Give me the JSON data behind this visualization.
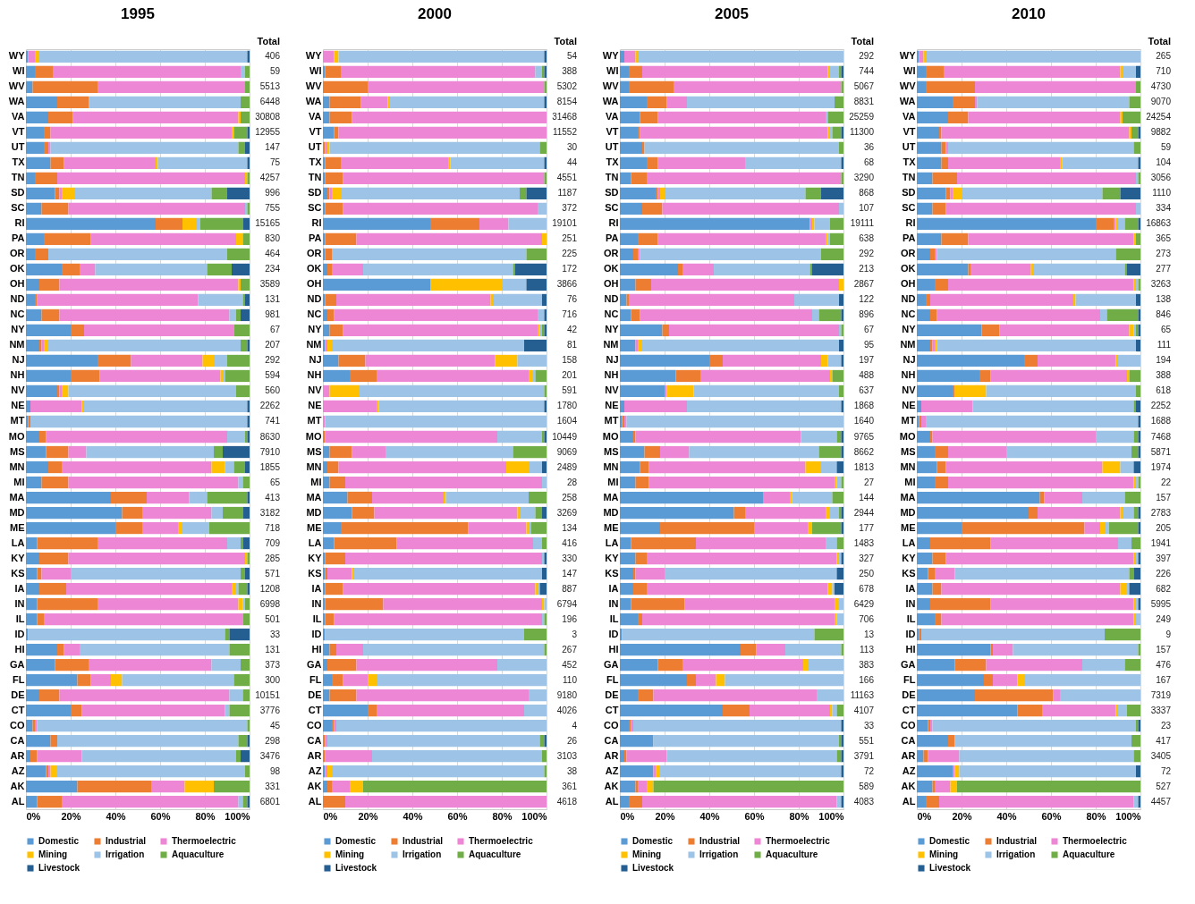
{
  "chart_data": [
    {
      "type": "bar",
      "orientation": "horizontal",
      "stacked": true,
      "title": "1995",
      "legend": "bottom",
      "grid": "x",
      "categories": [
        "WY",
        "WI",
        "WV",
        "WA",
        "VA",
        "VT",
        "UT",
        "TX",
        "TN",
        "SD",
        "SC",
        "RI",
        "PA",
        "OR",
        "OK",
        "OH",
        "ND",
        "NC",
        "NY",
        "NM",
        "NJ",
        "NH",
        "NV",
        "NE",
        "MT",
        "MO",
        "MS",
        "MN",
        "MI",
        "MA",
        "MD",
        "ME",
        "LA",
        "KY",
        "KS",
        "IA",
        "IN",
        "IL",
        "ID",
        "HI",
        "GA",
        "FL",
        "DE",
        "CT",
        "CO",
        "CA",
        "AR",
        "AZ",
        "AK",
        "AL"
      ],
      "xlim": [
        0,
        100
      ],
      "xticks": [
        {
          "value": 0,
          "label": "0%"
        },
        {
          "value": 20,
          "label": "20%"
        },
        {
          "value": 40,
          "label": "40%"
        },
        {
          "value": 60,
          "label": "60%"
        },
        {
          "value": 80,
          "label": "80%"
        },
        {
          "value": 100,
          "label": "100%"
        }
      ],
      "series": [
        {
          "name": "Domestic",
          "color": "#5b9bd5",
          "values": [
            1,
            4,
            3,
            14,
            10,
            8,
            8,
            11,
            4,
            13,
            7,
            58,
            8,
            4,
            16,
            6,
            4,
            7,
            20,
            6,
            32,
            20,
            14,
            2,
            1,
            6,
            9,
            10,
            7,
            38,
            43,
            40,
            5,
            6,
            5,
            6,
            5,
            5,
            1,
            14,
            13,
            23,
            6,
            20,
            3,
            11,
            2,
            9,
            23,
            5
          ]
        },
        {
          "name": "Industrial",
          "color": "#ed7d31",
          "values": [
            0,
            8,
            29,
            14,
            11,
            3,
            2,
            6,
            10,
            2,
            12,
            12,
            21,
            6,
            8,
            9,
            1,
            8,
            6,
            1,
            15,
            13,
            1,
            0,
            1,
            3,
            10,
            6,
            12,
            16,
            9,
            12,
            27,
            13,
            2,
            12,
            27,
            3,
            0,
            3,
            15,
            6,
            9,
            5,
            1,
            3,
            3,
            1,
            33,
            11
          ]
        },
        {
          "name": "Thermoelectric",
          "color": "#ee86d6",
          "values": [
            3,
            84,
            66,
            0,
            74,
            81,
            1,
            41,
            84,
            1,
            79,
            0,
            65,
            0,
            7,
            80,
            72,
            76,
            67,
            1,
            32,
            54,
            1,
            23,
            0,
            81,
            8,
            67,
            76,
            19,
            31,
            16,
            58,
            79,
            13,
            74,
            63,
            89,
            0,
            7,
            55,
            9,
            76,
            64,
            1,
            0,
            20,
            1,
            15,
            79
          ]
        },
        {
          "name": "Mining",
          "color": "#ffc000",
          "values": [
            2,
            0,
            0,
            0,
            1,
            1,
            0,
            1,
            1,
            6,
            0,
            6,
            3,
            0,
            0,
            1,
            0,
            0,
            0,
            2,
            5,
            1,
            3,
            1,
            0,
            0,
            0,
            6,
            0,
            0,
            0,
            2,
            0,
            1,
            0,
            2,
            2,
            0,
            0,
            0,
            0,
            5,
            0,
            0,
            0,
            0,
            0,
            3,
            13,
            0
          ]
        },
        {
          "name": "Irrigation",
          "color": "#9dc3e6",
          "values": [
            93,
            2,
            0,
            68,
            0,
            0,
            84,
            40,
            0,
            61,
            1,
            2,
            0,
            80,
            50,
            0,
            20,
            3,
            0,
            86,
            6,
            1,
            75,
            73,
            97,
            8,
            57,
            4,
            2,
            8,
            5,
            12,
            6,
            0,
            76,
            1,
            1,
            0,
            88,
            67,
            13,
            50,
            6,
            2,
            94,
            81,
            69,
            84,
            0,
            2
          ]
        },
        {
          "name": "Aquaculture",
          "color": "#70ad47",
          "values": [
            0,
            2,
            2,
            4,
            4,
            6,
            3,
            0,
            1,
            7,
            1,
            19,
            3,
            10,
            11,
            4,
            1,
            2,
            7,
            3,
            10,
            11,
            6,
            0,
            0,
            1,
            4,
            5,
            3,
            18,
            9,
            18,
            1,
            1,
            2,
            4,
            2,
            3,
            2,
            9,
            4,
            7,
            3,
            9,
            1,
            4,
            2,
            2,
            16,
            2
          ]
        },
        {
          "name": "Livestock",
          "color": "#255e91",
          "values": [
            1,
            0,
            0,
            0,
            0,
            1,
            2,
            1,
            0,
            10,
            0,
            3,
            0,
            0,
            8,
            0,
            2,
            4,
            0,
            1,
            0,
            0,
            0,
            1,
            1,
            1,
            12,
            2,
            0,
            1,
            3,
            0,
            3,
            0,
            2,
            1,
            0,
            0,
            9,
            0,
            0,
            0,
            0,
            0,
            0,
            1,
            4,
            0,
            0,
            1
          ]
        }
      ],
      "annotations": [
        "Total",
        "406",
        "59",
        "5513",
        "6448",
        "30808",
        "12955",
        "147",
        "75",
        "4257",
        "996",
        "755",
        "15165",
        "830",
        "464",
        "234",
        "3589",
        "131",
        "981",
        "67",
        "207",
        "292",
        "594",
        "560",
        "2262",
        "741",
        "8630",
        "7910",
        "1855",
        "65",
        "413",
        "3182",
        "718",
        "709",
        "285",
        "571",
        "1208",
        "6998",
        "501",
        "33",
        "131",
        "373",
        "300",
        "10151",
        "3776",
        "45",
        "298",
        "3476",
        "98",
        "331",
        "6801"
      ]
    },
    {
      "type": "bar",
      "orientation": "horizontal",
      "stacked": true,
      "title": "2000",
      "legend": "bottom",
      "grid": "x",
      "categories": [
        "WY",
        "WI",
        "WV",
        "WA",
        "VA",
        "VT",
        "UT",
        "TX",
        "TN",
        "SD",
        "SC",
        "RI",
        "PA",
        "OR",
        "OK",
        "OH",
        "ND",
        "NC",
        "NY",
        "NM",
        "NJ",
        "NH",
        "NV",
        "NE",
        "MT",
        "MO",
        "MS",
        "MN",
        "MI",
        "MA",
        "MD",
        "ME",
        "LA",
        "KY",
        "KS",
        "IA",
        "IN",
        "IL",
        "ID",
        "HI",
        "GA",
        "FL",
        "DE",
        "CT",
        "CO",
        "CA",
        "AR",
        "AZ",
        "AK",
        "AL"
      ],
      "xlim": [
        0,
        100
      ],
      "xticks": [
        {
          "value": 0,
          "label": "0%"
        },
        {
          "value": 20,
          "label": "20%"
        },
        {
          "value": 40,
          "label": "40%"
        },
        {
          "value": 60,
          "label": "60%"
        },
        {
          "value": 80,
          "label": "80%"
        },
        {
          "value": 100,
          "label": "100%"
        }
      ],
      "series": [
        {
          "name": "Domestic",
          "color": "#5b9bd5",
          "values": [
            0,
            1,
            0,
            3,
            3,
            5,
            0,
            1,
            1,
            2,
            1,
            48,
            1,
            1,
            2,
            48,
            1,
            2,
            3,
            1,
            7,
            12,
            0,
            0,
            0,
            0,
            3,
            2,
            3,
            11,
            13,
            8,
            5,
            1,
            1,
            1,
            1,
            1,
            1,
            3,
            2,
            4,
            3,
            20,
            4,
            0,
            0,
            1,
            2,
            0
          ]
        },
        {
          "name": "Industrial",
          "color": "#ed7d31",
          "values": [
            0,
            7,
            20,
            14,
            10,
            2,
            1,
            7,
            8,
            1,
            8,
            22,
            14,
            3,
            2,
            0,
            5,
            3,
            6,
            0,
            12,
            12,
            0,
            0,
            0,
            1,
            10,
            5,
            7,
            11,
            10,
            57,
            28,
            9,
            1,
            8,
            26,
            4,
            0,
            3,
            13,
            5,
            12,
            4,
            1,
            1,
            1,
            0,
            2,
            10
          ]
        },
        {
          "name": "Thermoelectric",
          "color": "#ee86d6",
          "values": [
            5,
            87,
            79,
            12,
            87,
            93,
            1,
            48,
            90,
            1,
            87,
            13,
            83,
            0,
            14,
            0,
            69,
            91,
            87,
            1,
            58,
            68,
            3,
            24,
            1,
            77,
            15,
            75,
            88,
            32,
            64,
            26,
            61,
            88,
            11,
            86,
            71,
            93,
            0,
            12,
            63,
            11,
            77,
            66,
            1,
            1,
            21,
            1,
            8,
            90
          ]
        },
        {
          "name": "Mining",
          "color": "#ffc000",
          "values": [
            2,
            0,
            0,
            1,
            0,
            0,
            1,
            1,
            0,
            4,
            0,
            0,
            2,
            0,
            0,
            32,
            1,
            0,
            1,
            2,
            10,
            2,
            13,
            1,
            0,
            0,
            0,
            10,
            0,
            1,
            1,
            1,
            0,
            0,
            1,
            1,
            1,
            0,
            0,
            0,
            0,
            4,
            0,
            0,
            0,
            0,
            0,
            2,
            6,
            0
          ]
        },
        {
          "name": "Irrigation",
          "color": "#9dc3e6",
          "values": [
            92,
            3,
            0,
            69,
            0,
            0,
            94,
            42,
            0,
            80,
            4,
            17,
            0,
            87,
            67,
            11,
            22,
            3,
            1,
            86,
            13,
            1,
            83,
            74,
            99,
            20,
            57,
            6,
            2,
            37,
            7,
            1,
            4,
            1,
            84,
            1,
            1,
            1,
            89,
            81,
            22,
            76,
            8,
            10,
            94,
            95,
            76,
            95,
            0,
            0
          ]
        },
        {
          "name": "Aquaculture",
          "color": "#70ad47",
          "values": [
            0,
            1,
            1,
            0,
            0,
            0,
            3,
            0,
            1,
            3,
            0,
            0,
            0,
            9,
            1,
            0,
            0,
            0,
            1,
            0,
            0,
            5,
            1,
            0,
            0,
            1,
            15,
            0,
            0,
            8,
            3,
            7,
            2,
            0,
            0,
            0,
            0,
            1,
            10,
            1,
            0,
            0,
            0,
            0,
            0,
            2,
            2,
            1,
            82,
            0
          ]
        },
        {
          "name": "Livestock",
          "color": "#255e91",
          "values": [
            1,
            1,
            0,
            1,
            0,
            0,
            0,
            1,
            0,
            9,
            0,
            0,
            0,
            0,
            14,
            9,
            2,
            1,
            1,
            10,
            0,
            0,
            0,
            1,
            0,
            1,
            0,
            2,
            0,
            0,
            2,
            0,
            0,
            1,
            2,
            3,
            0,
            0,
            0,
            0,
            0,
            0,
            0,
            0,
            0,
            1,
            0,
            0,
            0,
            0
          ]
        }
      ],
      "annotations": [
        "Total",
        "54",
        "388",
        "5302",
        "8154",
        "31468",
        "11552",
        "30",
        "44",
        "4551",
        "1187",
        "372",
        "19101",
        "251",
        "225",
        "172",
        "3866",
        "76",
        "716",
        "42",
        "81",
        "158",
        "201",
        "591",
        "1780",
        "1604",
        "10449",
        "9069",
        "2489",
        "28",
        "258",
        "3269",
        "134",
        "416",
        "330",
        "147",
        "887",
        "6794",
        "196",
        "3",
        "267",
        "452",
        "110",
        "9180",
        "4026",
        "4",
        "26",
        "3103",
        "38",
        "361",
        "4618"
      ]
    },
    {
      "type": "bar",
      "orientation": "horizontal",
      "stacked": true,
      "title": "2005",
      "legend": "bottom",
      "grid": "x",
      "categories": [
        "WY",
        "WI",
        "WV",
        "WA",
        "VA",
        "VT",
        "UT",
        "TX",
        "TN",
        "SD",
        "SC",
        "RI",
        "PA",
        "OR",
        "OK",
        "OH",
        "ND",
        "NC",
        "NY",
        "NM",
        "NJ",
        "NH",
        "NV",
        "NE",
        "MT",
        "MO",
        "MS",
        "MN",
        "MI",
        "MA",
        "MD",
        "ME",
        "LA",
        "KY",
        "KS",
        "IA",
        "IN",
        "IL",
        "ID",
        "HI",
        "GA",
        "FL",
        "DE",
        "CT",
        "CO",
        "CA",
        "AR",
        "AZ",
        "AK",
        "AL"
      ],
      "xlim": [
        0,
        100
      ],
      "xticks": [
        {
          "value": 0,
          "label": "0%"
        },
        {
          "value": 20,
          "label": "20%"
        },
        {
          "value": 40,
          "label": "40%"
        },
        {
          "value": 60,
          "label": "60%"
        },
        {
          "value": 80,
          "label": "80%"
        },
        {
          "value": 100,
          "label": "100%"
        }
      ],
      "series": [
        {
          "name": "Domestic",
          "color": "#5b9bd5",
          "values": [
            2,
            4,
            4,
            12,
            9,
            8,
            10,
            12,
            5,
            16,
            10,
            85,
            8,
            6,
            26,
            7,
            3,
            5,
            19,
            7,
            40,
            25,
            20,
            2,
            1,
            6,
            11,
            9,
            7,
            64,
            51,
            18,
            5,
            7,
            6,
            6,
            5,
            8,
            1,
            54,
            17,
            30,
            8,
            46,
            4,
            15,
            2,
            15,
            7,
            4
          ]
        },
        {
          "name": "Industrial",
          "color": "#ed7d31",
          "values": [
            0,
            6,
            20,
            9,
            8,
            1,
            1,
            5,
            7,
            1,
            9,
            0,
            9,
            2,
            2,
            7,
            1,
            4,
            3,
            0,
            6,
            11,
            0,
            0,
            1,
            1,
            7,
            4,
            6,
            0,
            5,
            42,
            29,
            5,
            1,
            6,
            24,
            2,
            0,
            7,
            11,
            4,
            7,
            12,
            1,
            0,
            1,
            0,
            1,
            6
          ]
        },
        {
          "name": "Thermoelectric",
          "color": "#ee86d6",
          "values": [
            5,
            83,
            75,
            9,
            75,
            84,
            0,
            39,
            87,
            1,
            79,
            1,
            75,
            1,
            14,
            84,
            74,
            77,
            76,
            1,
            44,
            58,
            1,
            28,
            1,
            74,
            13,
            70,
            83,
            12,
            36,
            24,
            58,
            85,
            13,
            81,
            67,
            86,
            0,
            13,
            54,
            9,
            73,
            36,
            1,
            0,
            18,
            1,
            4,
            87
          ]
        },
        {
          "name": "Mining",
          "color": "#ffc000",
          "values": [
            1,
            1,
            0,
            0,
            0,
            1,
            0,
            0,
            0,
            2,
            0,
            1,
            1,
            0,
            0,
            2,
            0,
            0,
            0,
            2,
            3,
            1,
            12,
            0,
            0,
            0,
            0,
            7,
            1,
            1,
            2,
            2,
            0,
            1,
            0,
            2,
            2,
            1,
            0,
            0,
            2,
            4,
            0,
            1,
            0,
            0,
            0,
            2,
            3,
            0
          ]
        },
        {
          "name": "Irrigation",
          "color": "#9dc3e6",
          "values": [
            92,
            4,
            0,
            66,
            1,
            1,
            87,
            43,
            0,
            63,
            2,
            7,
            1,
            81,
            43,
            0,
            20,
            3,
            1,
            88,
            6,
            0,
            65,
            69,
            97,
            16,
            58,
            7,
            2,
            18,
            4,
            0,
            5,
            1,
            77,
            1,
            2,
            3,
            86,
            25,
            16,
            53,
            12,
            2,
            93,
            83,
            76,
            81,
            0,
            2
          ]
        },
        {
          "name": "Aquaculture",
          "color": "#70ad47",
          "values": [
            0,
            1,
            1,
            4,
            7,
            4,
            2,
            0,
            1,
            7,
            0,
            6,
            6,
            10,
            1,
            0,
            0,
            10,
            1,
            0,
            0,
            5,
            2,
            0,
            0,
            2,
            10,
            0,
            1,
            5,
            1,
            13,
            3,
            0,
            0,
            0,
            0,
            0,
            13,
            1,
            0,
            0,
            0,
            3,
            0,
            1,
            2,
            0,
            85,
            0
          ]
        },
        {
          "name": "Livestock",
          "color": "#255e91",
          "values": [
            0,
            1,
            0,
            0,
            0,
            1,
            0,
            1,
            0,
            10,
            0,
            0,
            0,
            0,
            14,
            0,
            2,
            1,
            0,
            2,
            1,
            0,
            0,
            1,
            0,
            1,
            1,
            3,
            0,
            0,
            1,
            1,
            0,
            1,
            3,
            4,
            0,
            0,
            0,
            0,
            0,
            0,
            0,
            0,
            1,
            1,
            1,
            1,
            0,
            1
          ]
        }
      ],
      "annotations": [
        "Total",
        "292",
        "744",
        "5067",
        "8831",
        "25259",
        "11300",
        "36",
        "68",
        "3290",
        "868",
        "107",
        "19111",
        "638",
        "292",
        "213",
        "2867",
        "122",
        "896",
        "67",
        "95",
        "197",
        "488",
        "637",
        "1868",
        "1640",
        "9765",
        "8662",
        "1813",
        "27",
        "144",
        "2944",
        "177",
        "1483",
        "327",
        "250",
        "678",
        "6429",
        "706",
        "13",
        "113",
        "383",
        "166",
        "11163",
        "4107",
        "33",
        "551",
        "3791",
        "72",
        "589",
        "4083"
      ]
    },
    {
      "type": "bar",
      "orientation": "horizontal",
      "stacked": true,
      "title": "2010",
      "legend": "bottom",
      "grid": "x",
      "categories": [
        "WY",
        "WI",
        "WV",
        "WA",
        "VA",
        "VT",
        "UT",
        "TX",
        "TN",
        "SD",
        "SC",
        "RI",
        "PA",
        "OR",
        "OK",
        "OH",
        "ND",
        "NC",
        "NY",
        "NM",
        "NJ",
        "NH",
        "NV",
        "NE",
        "MT",
        "MO",
        "MS",
        "MN",
        "MI",
        "MA",
        "MD",
        "ME",
        "LA",
        "KY",
        "KS",
        "IA",
        "IN",
        "IL",
        "ID",
        "HI",
        "GA",
        "FL",
        "DE",
        "CT",
        "CO",
        "CA",
        "AR",
        "AZ",
        "AK",
        "AL"
      ],
      "xlim": [
        0,
        100
      ],
      "xticks": [
        {
          "value": 0,
          "label": "0%"
        },
        {
          "value": 20,
          "label": "20%"
        },
        {
          "value": 40,
          "label": "40%"
        },
        {
          "value": 60,
          "label": "60%"
        },
        {
          "value": 80,
          "label": "80%"
        },
        {
          "value": 100,
          "label": "100%"
        }
      ],
      "series": [
        {
          "name": "Domestic",
          "color": "#5b9bd5",
          "values": [
            1,
            4,
            4,
            16,
            14,
            10,
            11,
            11,
            7,
            13,
            7,
            80,
            11,
            6,
            23,
            8,
            4,
            6,
            29,
            6,
            48,
            28,
            16,
            2,
            1,
            6,
            8,
            9,
            8,
            55,
            50,
            20,
            6,
            7,
            5,
            7,
            6,
            8,
            1,
            33,
            17,
            30,
            26,
            45,
            5,
            14,
            3,
            16,
            7,
            4
          ]
        },
        {
          "name": "Industrial",
          "color": "#ed7d31",
          "values": [
            0,
            8,
            22,
            10,
            9,
            1,
            2,
            3,
            11,
            2,
            6,
            8,
            12,
            2,
            1,
            6,
            2,
            3,
            8,
            1,
            6,
            5,
            1,
            0,
            1,
            1,
            6,
            4,
            6,
            2,
            4,
            55,
            27,
            6,
            3,
            4,
            27,
            3,
            1,
            1,
            14,
            4,
            35,
            11,
            1,
            3,
            2,
            0,
            1,
            6
          ]
        },
        {
          "name": "Thermoelectric",
          "color": "#ee86d6",
          "values": [
            2,
            79,
            72,
            1,
            68,
            84,
            1,
            50,
            80,
            1,
            85,
            1,
            74,
            1,
            27,
            83,
            64,
            73,
            58,
            1,
            35,
            61,
            0,
            23,
            2,
            73,
            26,
            70,
            83,
            17,
            37,
            7,
            57,
            84,
            9,
            80,
            64,
            86,
            0,
            9,
            43,
            11,
            3,
            33,
            1,
            0,
            14,
            1,
            7,
            87
          ]
        },
        {
          "name": "Mining",
          "color": "#ffc000",
          "values": [
            1,
            1,
            0,
            0,
            1,
            1,
            0,
            1,
            0,
            4,
            0,
            1,
            1,
            0,
            1,
            1,
            1,
            0,
            2,
            1,
            1,
            1,
            14,
            0,
            0,
            0,
            0,
            8,
            1,
            0,
            1,
            2,
            0,
            1,
            0,
            3,
            1,
            1,
            0,
            0,
            0,
            3,
            0,
            1,
            0,
            0,
            0,
            2,
            3,
            0
          ]
        },
        {
          "name": "Irrigation",
          "color": "#9dc3e6",
          "values": [
            96,
            6,
            0,
            68,
            0,
            0,
            83,
            34,
            1,
            63,
            2,
            3,
            0,
            80,
            41,
            1,
            27,
            3,
            1,
            89,
            10,
            0,
            67,
            72,
            95,
            17,
            56,
            6,
            1,
            19,
            5,
            2,
            6,
            1,
            78,
            1,
            1,
            2,
            82,
            56,
            19,
            52,
            36,
            4,
            91,
            79,
            78,
            79,
            0,
            2
          ]
        },
        {
          "name": "Aquaculture",
          "color": "#70ad47",
          "values": [
            0,
            0,
            2,
            5,
            8,
            3,
            3,
            0,
            1,
            8,
            0,
            6,
            2,
            11,
            1,
            1,
            0,
            14,
            1,
            0,
            0,
            5,
            2,
            1,
            0,
            2,
            3,
            0,
            1,
            7,
            2,
            13,
            4,
            0,
            2,
            0,
            0,
            0,
            16,
            1,
            7,
            0,
            0,
            6,
            1,
            4,
            3,
            0,
            82,
            0
          ]
        },
        {
          "name": "Livestock",
          "color": "#255e91",
          "values": [
            0,
            2,
            0,
            0,
            0,
            1,
            0,
            1,
            0,
            9,
            0,
            1,
            0,
            0,
            6,
            0,
            2,
            1,
            1,
            2,
            0,
            0,
            0,
            2,
            1,
            1,
            1,
            3,
            0,
            0,
            1,
            1,
            0,
            1,
            3,
            5,
            1,
            0,
            0,
            0,
            0,
            0,
            0,
            0,
            1,
            0,
            0,
            2,
            0,
            1
          ]
        }
      ],
      "annotations": [
        "Total",
        "265",
        "710",
        "4730",
        "9070",
        "24254",
        "9882",
        "59",
        "104",
        "3056",
        "1110",
        "334",
        "16863",
        "365",
        "273",
        "277",
        "3263",
        "138",
        "846",
        "65",
        "111",
        "194",
        "388",
        "618",
        "2252",
        "1688",
        "7468",
        "5871",
        "1974",
        "22",
        "157",
        "2783",
        "205",
        "1941",
        "397",
        "226",
        "682",
        "5995",
        "249",
        "9",
        "157",
        "476",
        "167",
        "7319",
        "3337",
        "23",
        "417",
        "3405",
        "72",
        "527",
        "4457"
      ]
    }
  ]
}
